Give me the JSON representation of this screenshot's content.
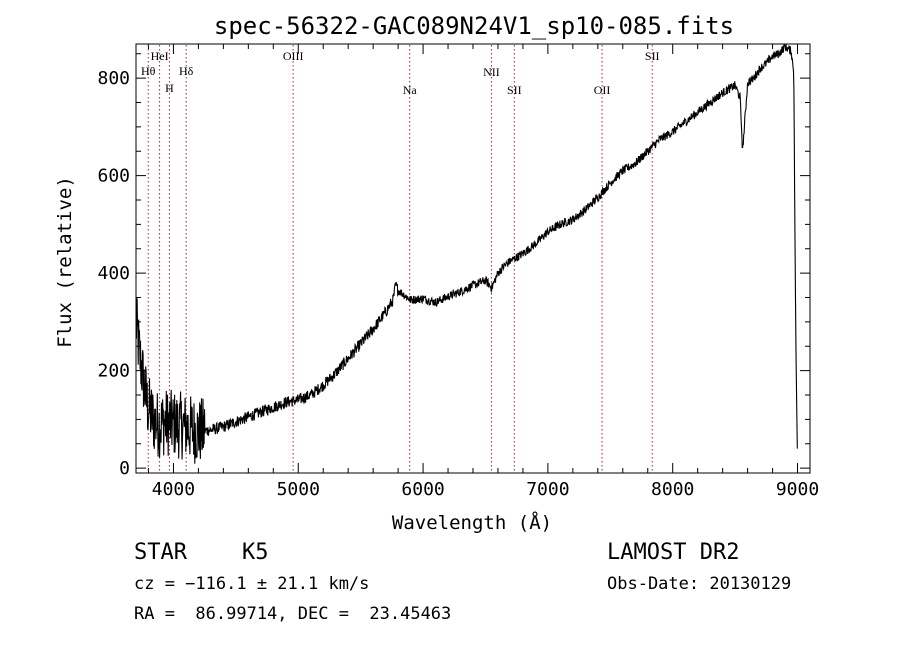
{
  "chart_data": {
    "type": "line",
    "title": "spec-56322-GAC089N24V1_sp10-085.fits",
    "xlabel": "Wavelength (Å)",
    "ylabel": "Flux (relative)",
    "xlim": [
      3700,
      9100
    ],
    "ylim": [
      -10,
      870
    ],
    "xticks": [
      4000,
      5000,
      6000,
      7000,
      8000,
      9000
    ],
    "yticks": [
      0,
      200,
      400,
      600,
      800
    ],
    "line_color": "#000000",
    "marker_color": "#b22222",
    "grid": false,
    "series": [
      {
        "x": [
          3700,
          3730,
          3760,
          3790,
          3820,
          3850,
          3880,
          3910,
          3940,
          3970,
          4000,
          4050,
          4100,
          4150,
          4200,
          4300,
          4400,
          4500,
          4600,
          4700,
          4800,
          4900,
          5000,
          5100,
          5200,
          5300,
          5400,
          5500,
          5600,
          5700,
          5760,
          5780,
          5800,
          5850,
          5900,
          6000,
          6100,
          6200,
          6300,
          6400,
          6500,
          6550,
          6600,
          6650,
          6700,
          6800,
          6900,
          7000,
          7100,
          7200,
          7300,
          7400,
          7500,
          7600,
          7700,
          7800,
          7900,
          8000,
          8100,
          8200,
          8300,
          8400,
          8500,
          8540,
          8560,
          8600,
          8650,
          8700,
          8750,
          8800,
          8850,
          8900,
          8950,
          8970,
          8985,
          9000
        ],
        "y": [
          300,
          230,
          180,
          130,
          110,
          95,
          90,
          92,
          95,
          92,
          90,
          88,
          85,
          80,
          75,
          78,
          85,
          95,
          105,
          115,
          125,
          135,
          140,
          150,
          170,
          195,
          225,
          255,
          285,
          320,
          345,
          375,
          365,
          355,
          345,
          348,
          340,
          352,
          362,
          375,
          385,
          370,
          400,
          415,
          425,
          440,
          460,
          485,
          500,
          510,
          530,
          555,
          585,
          610,
          625,
          650,
          675,
          690,
          710,
          730,
          750,
          770,
          785,
          760,
          650,
          790,
          800,
          820,
          830,
          845,
          850,
          865,
          855,
          810,
          300,
          0
        ]
      }
    ],
    "markers": [
      {
        "label": "Hθ",
        "x": 3798
      },
      {
        "label": "HeI",
        "x": 3889
      },
      {
        "label": "H",
        "x": 3968
      },
      {
        "label": "Hδ",
        "x": 4102
      },
      {
        "label": "OIII",
        "x": 4959
      },
      {
        "label": "Na",
        "x": 5893
      },
      {
        "label": "NII",
        "x": 6548
      },
      {
        "label": "SII",
        "x": 6731
      },
      {
        "label": "OII",
        "x": 7434
      },
      {
        "label": "SII",
        "x": 7836
      }
    ]
  },
  "info": {
    "object_type": "STAR",
    "subclass": "K5",
    "cz": "cz = −116.1 ± 21.1 km/s",
    "coords": "RA =  86.99714, DEC =  23.45463",
    "survey": "LAMOST DR2",
    "obs_date": "Obs-Date: 20130129"
  }
}
